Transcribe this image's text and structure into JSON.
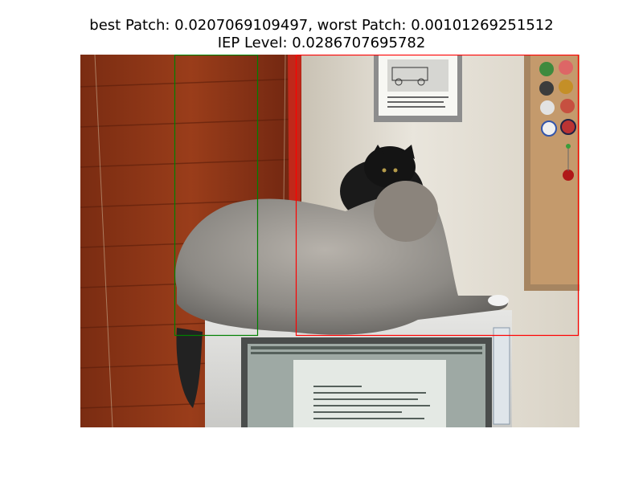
{
  "figure": {
    "title_line1": "best Patch: 0.0207069109497, worst Patch: 0.00101269251512",
    "title_line2": "IEP Level: 0.0286707695782",
    "best_patch_color": "#008000",
    "worst_patch_color": "#ff0000"
  },
  "photo": {
    "subject": "two cats on computer monitor",
    "icons": [
      "window-blinds",
      "framed-cartoon",
      "corkboard-with-pins",
      "gray-cat",
      "black-cat",
      "crt-monitor"
    ]
  }
}
